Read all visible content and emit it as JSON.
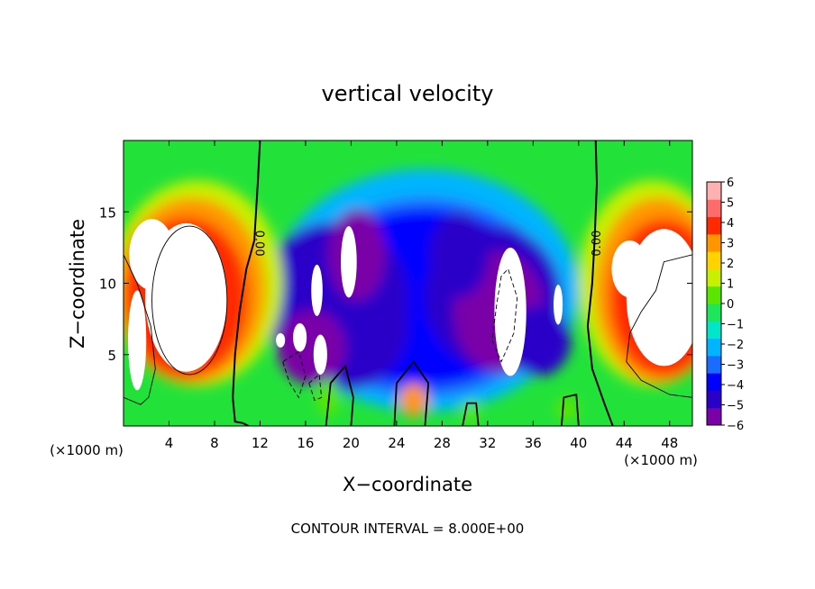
{
  "chart_data": {
    "type": "heatmap",
    "title": "vertical velocity",
    "xlabel": "X−coordinate",
    "ylabel": "Z−coordinate",
    "x_unit_left": "(×1000 m)",
    "x_unit_right": "(×1000 m)",
    "footer": "CONTOUR INTERVAL = 8.000E+00",
    "xlim": [
      0,
      50
    ],
    "ylim": [
      0,
      20
    ],
    "x_ticks": [
      4,
      8,
      12,
      16,
      20,
      24,
      28,
      32,
      36,
      40,
      44,
      48
    ],
    "x_tick_labels": [
      "4",
      "8",
      "12",
      "16",
      "20",
      "24",
      "28",
      "32",
      "36",
      "40",
      "44",
      "48"
    ],
    "y_ticks": [
      5,
      10,
      15
    ],
    "y_tick_labels": [
      "5",
      "10",
      "15"
    ],
    "colorbar": {
      "vmin": -6,
      "vmax": 6,
      "ticks": [
        6,
        5,
        4,
        3,
        2,
        1,
        0,
        -1,
        -2,
        -3,
        -4,
        -5,
        -6
      ],
      "tick_labels": [
        "6",
        "5",
        "4",
        "3",
        "2",
        "1",
        "0",
        "−1",
        "−2",
        "−3",
        "−4",
        "−5",
        "−6"
      ],
      "colors": [
        "#7a00a8",
        "#2a00c8",
        "#0000ff",
        "#1a6bff",
        "#00b4ff",
        "#00e6c8",
        "#1ee65a",
        "#5ae600",
        "#c8f000",
        "#ffd200",
        "#ff9600",
        "#ff2a00",
        "#ff6a6a",
        "#ffb0b0"
      ],
      "saturation_color": "#ffffff"
    },
    "contour_labels": [
      "0.00",
      "0.00"
    ],
    "zero_contour_x_approx": [
      11.5,
      42
    ]
  }
}
